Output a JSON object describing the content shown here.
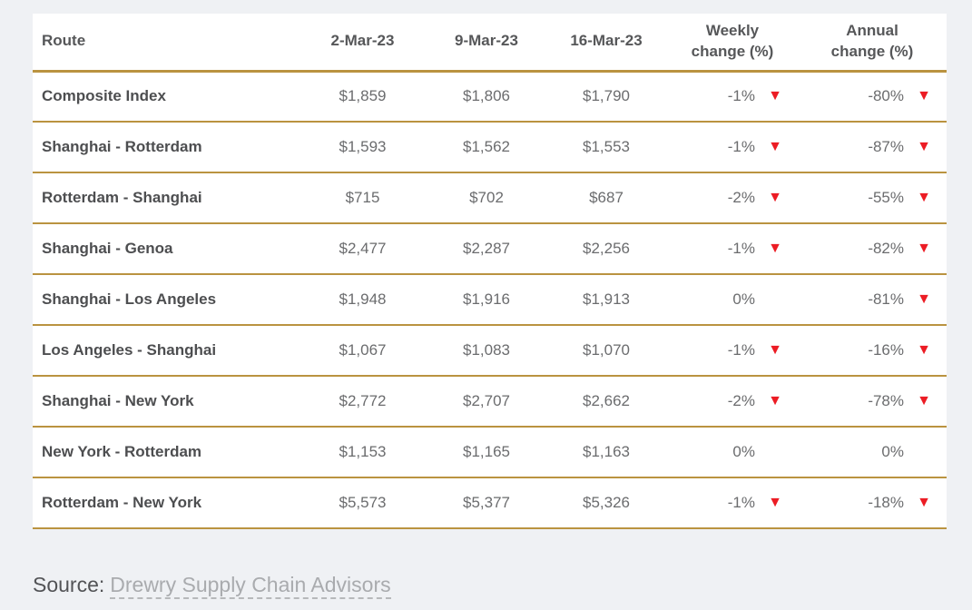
{
  "colors": {
    "page_background": "#eff1f4",
    "card_background": "#ffffff",
    "divider_gold": "#ba9340",
    "route_text": "#4d4e50",
    "value_text": "#6b6c6e",
    "header_text": "#565759",
    "triangle_red": "#ec1c24",
    "source_label": "#525356",
    "source_link": "#a9abae"
  },
  "table": {
    "header": {
      "route": "Route",
      "dates": [
        "2-Mar-23",
        "9-Mar-23",
        "16-Mar-23"
      ],
      "weekly": {
        "line1": "Weekly",
        "line2": "change (%)"
      },
      "annual": {
        "line1": "Annual",
        "line2": "change (%)"
      }
    },
    "rows": [
      {
        "route": "Composite Index",
        "v1": "$1,859",
        "v2": "$1,806",
        "v3": "$1,790",
        "weekly": "-1%",
        "weekly_arrow": "▼",
        "annual": "-80%",
        "annual_arrow": "▼"
      },
      {
        "route": "Shanghai - Rotterdam",
        "v1": "$1,593",
        "v2": "$1,562",
        "v3": "$1,553",
        "weekly": "-1%",
        "weekly_arrow": "▼",
        "annual": "-87%",
        "annual_arrow": "▼"
      },
      {
        "route": "Rotterdam - Shanghai",
        "v1": "$715",
        "v2": "$702",
        "v3": "$687",
        "weekly": "-2%",
        "weekly_arrow": "▼",
        "annual": "-55%",
        "annual_arrow": "▼"
      },
      {
        "route": "Shanghai - Genoa",
        "v1": "$2,477",
        "v2": "$2,287",
        "v3": "$2,256",
        "weekly": "-1%",
        "weekly_arrow": "▼",
        "annual": "-82%",
        "annual_arrow": "▼"
      },
      {
        "route": "Shanghai - Los Angeles",
        "v1": "$1,948",
        "v2": "$1,916",
        "v3": "$1,913",
        "weekly": "0%",
        "weekly_arrow": "",
        "annual": "-81%",
        "annual_arrow": "▼"
      },
      {
        "route": "Los Angeles - Shanghai",
        "v1": "$1,067",
        "v2": "$1,083",
        "v3": "$1,070",
        "weekly": "-1%",
        "weekly_arrow": "▼",
        "annual": "-16%",
        "annual_arrow": "▼"
      },
      {
        "route": "Shanghai - New York",
        "v1": "$2,772",
        "v2": "$2,707",
        "v3": "$2,662",
        "weekly": "-2%",
        "weekly_arrow": "▼",
        "annual": "-78%",
        "annual_arrow": "▼"
      },
      {
        "route": "New York - Rotterdam",
        "v1": "$1,153",
        "v2": "$1,165",
        "v3": "$1,163",
        "weekly": "0%",
        "weekly_arrow": "",
        "annual": "0%",
        "annual_arrow": ""
      },
      {
        "route": "Rotterdam - New York",
        "v1": "$5,573",
        "v2": "$5,377",
        "v3": "$5,326",
        "weekly": "-1%",
        "weekly_arrow": "▼",
        "annual": "-18%",
        "annual_arrow": "▼"
      }
    ]
  },
  "source": {
    "label": "Source:",
    "link_text": "Drewry Supply Chain Advisors"
  },
  "chart_data": {
    "type": "table",
    "columns": [
      "Route",
      "2-Mar-23",
      "9-Mar-23",
      "16-Mar-23",
      "Weekly change (%)",
      "Annual change (%)"
    ],
    "rows": [
      [
        "Composite Index",
        1859,
        1806,
        1790,
        -1,
        -80
      ],
      [
        "Shanghai - Rotterdam",
        1593,
        1562,
        1553,
        -1,
        -87
      ],
      [
        "Rotterdam - Shanghai",
        715,
        702,
        687,
        -2,
        -55
      ],
      [
        "Shanghai - Genoa",
        2477,
        2287,
        2256,
        -1,
        -82
      ],
      [
        "Shanghai - Los Angeles",
        1948,
        1916,
        1913,
        0,
        -81
      ],
      [
        "Los Angeles - Shanghai",
        1067,
        1083,
        1070,
        -1,
        -16
      ],
      [
        "Shanghai - New York",
        2772,
        2707,
        2662,
        -2,
        -78
      ],
      [
        "New York - Rotterdam",
        1153,
        1165,
        1163,
        0,
        0
      ],
      [
        "Rotterdam - New York",
        5573,
        5377,
        5326,
        -1,
        -18
      ]
    ],
    "value_format": "USD",
    "negative_marker": "red down triangle",
    "source": "Drewry Supply Chain Advisors"
  }
}
